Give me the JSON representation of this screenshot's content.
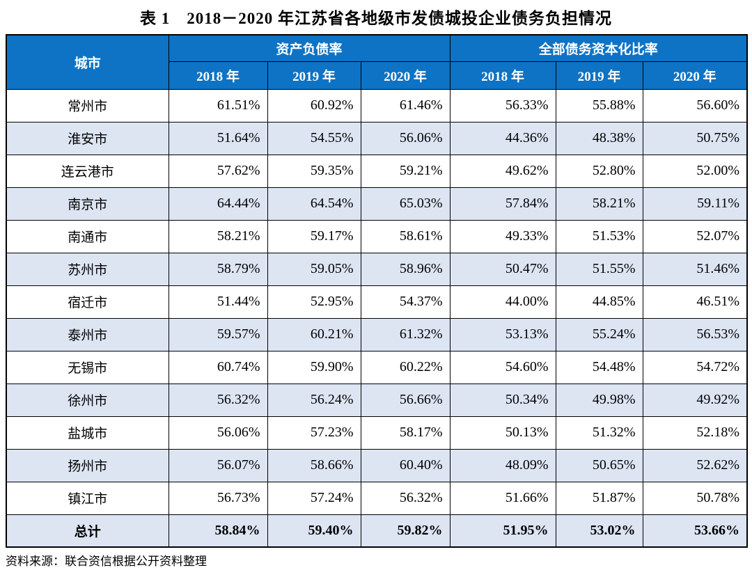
{
  "chart_data": {
    "type": "table",
    "title": "表 1　2018－2020 年江苏省各地级市发债城投企业债务负担情况",
    "corner_header": "城市",
    "column_groups": [
      {
        "label": "资产负债率",
        "years": [
          "2018 年",
          "2019 年",
          "2020 年"
        ]
      },
      {
        "label": "全部债务资本化比率",
        "years": [
          "2018 年",
          "2019 年",
          "2020 年"
        ]
      }
    ],
    "rows": [
      {
        "city": "常州市",
        "values": [
          "61.51%",
          "60.92%",
          "61.46%",
          "56.33%",
          "55.88%",
          "56.60%"
        ]
      },
      {
        "city": "淮安市",
        "values": [
          "51.64%",
          "54.55%",
          "56.06%",
          "44.36%",
          "48.38%",
          "50.75%"
        ]
      },
      {
        "city": "连云港市",
        "values": [
          "57.62%",
          "59.35%",
          "59.21%",
          "49.62%",
          "52.80%",
          "52.00%"
        ]
      },
      {
        "city": "南京市",
        "values": [
          "64.44%",
          "64.54%",
          "65.03%",
          "57.84%",
          "58.21%",
          "59.11%"
        ]
      },
      {
        "city": "南通市",
        "values": [
          "58.21%",
          "59.17%",
          "58.61%",
          "49.33%",
          "51.53%",
          "52.07%"
        ]
      },
      {
        "city": "苏州市",
        "values": [
          "58.79%",
          "59.05%",
          "58.96%",
          "50.47%",
          "51.55%",
          "51.46%"
        ]
      },
      {
        "city": "宿迁市",
        "values": [
          "51.44%",
          "52.95%",
          "54.37%",
          "44.00%",
          "44.85%",
          "46.51%"
        ]
      },
      {
        "city": "泰州市",
        "values": [
          "59.57%",
          "60.21%",
          "61.32%",
          "53.13%",
          "55.24%",
          "56.53%"
        ]
      },
      {
        "city": "无锡市",
        "values": [
          "60.74%",
          "59.90%",
          "60.22%",
          "54.60%",
          "54.48%",
          "54.72%"
        ]
      },
      {
        "city": "徐州市",
        "values": [
          "56.32%",
          "56.24%",
          "56.66%",
          "50.34%",
          "49.98%",
          "49.92%"
        ]
      },
      {
        "city": "盐城市",
        "values": [
          "56.06%",
          "57.23%",
          "58.17%",
          "50.13%",
          "51.32%",
          "52.18%"
        ]
      },
      {
        "city": "扬州市",
        "values": [
          "56.07%",
          "58.66%",
          "60.40%",
          "48.09%",
          "50.65%",
          "52.62%"
        ]
      },
      {
        "city": "镇江市",
        "values": [
          "56.73%",
          "57.24%",
          "56.32%",
          "51.66%",
          "51.87%",
          "50.78%"
        ]
      }
    ],
    "total": {
      "city": "总计",
      "values": [
        "58.84%",
        "59.40%",
        "59.82%",
        "51.95%",
        "53.02%",
        "53.66%"
      ]
    },
    "source": "资料来源：联合资信根据公开资料整理"
  },
  "colors": {
    "header_bg": "#0e73c4",
    "header_text": "#ffffff",
    "alt_row_bg": "#dde5f3",
    "border": "#000000"
  }
}
